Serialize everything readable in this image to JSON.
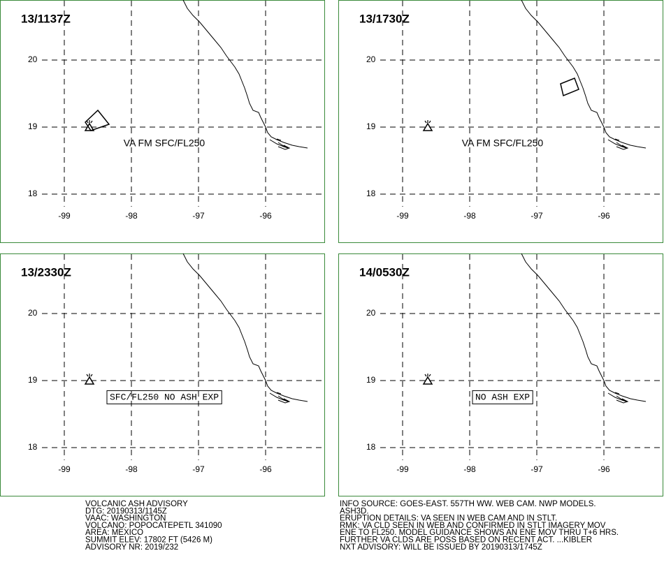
{
  "panels": [
    {
      "time": "13/1137Z",
      "annotation": "VA FM SFC/FL250"
    },
    {
      "time": "13/1730Z",
      "annotation": "VA FM SFC/FL250"
    },
    {
      "time": "13/2330Z",
      "annotation": "SFC/FL250 NO ASH EXP"
    },
    {
      "time": "14/0530Z",
      "annotation": "NO ASH EXP"
    }
  ],
  "lat_labels": [
    20,
    19,
    18
  ],
  "lon_labels": [
    -99,
    -98,
    -97,
    -96
  ],
  "advisory_left": [
    "VOLCANIC ASH ADVISORY",
    "DTG: 20190313/1145Z",
    "VAAC: WASHINGTON",
    "VOLCANO: POPOCATEPETL 341090",
    "AREA: MEXICO",
    "SUMMIT ELEV: 17802 FT (5426 M)",
    "ADVISORY NR: 2019/232"
  ],
  "advisory_right": [
    "INFO SOURCE: GOES-EAST. 557TH WW. WEB CAM. NWP MODELS.",
    "ASH3D.",
    "ERUPTION DETAILS: VA SEEN IN WEB CAM AND IN STLT.",
    "RMK: VA CLD SEEN IN WEB AND CONFIRMED IN STLT IMAGERY MOV",
    "ENE TO FL250. MODEL GUIDANCE SHOWS AN ENE MOV THRU T+6 HRS.",
    "FURTHER VA CLDS ARE POSS BASED ON RECENT ACT. ...KIBLER",
    "NXT ADVISORY: WILL BE ISSUED BY 20190313/1745Z"
  ]
}
